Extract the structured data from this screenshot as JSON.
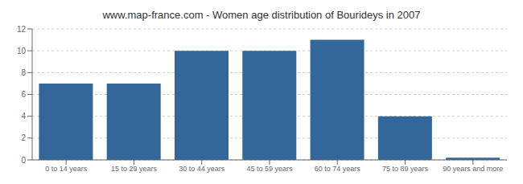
{
  "chart_data": {
    "type": "bar",
    "title": "www.map-france.com - Women age distribution of Bourideys in 2007",
    "categories": [
      "0 to 14 years",
      "15 to 29 years",
      "30 to 44 years",
      "45 to 59 years",
      "60 to 74 years",
      "75 to 89 years",
      "90 years and more"
    ],
    "values": [
      7,
      7,
      10,
      10,
      11,
      4,
      0.2
    ],
    "color": "#336699",
    "ylim": [
      0,
      12
    ],
    "yticks": [
      0,
      2,
      4,
      6,
      8,
      10,
      12
    ],
    "grid": true
  }
}
